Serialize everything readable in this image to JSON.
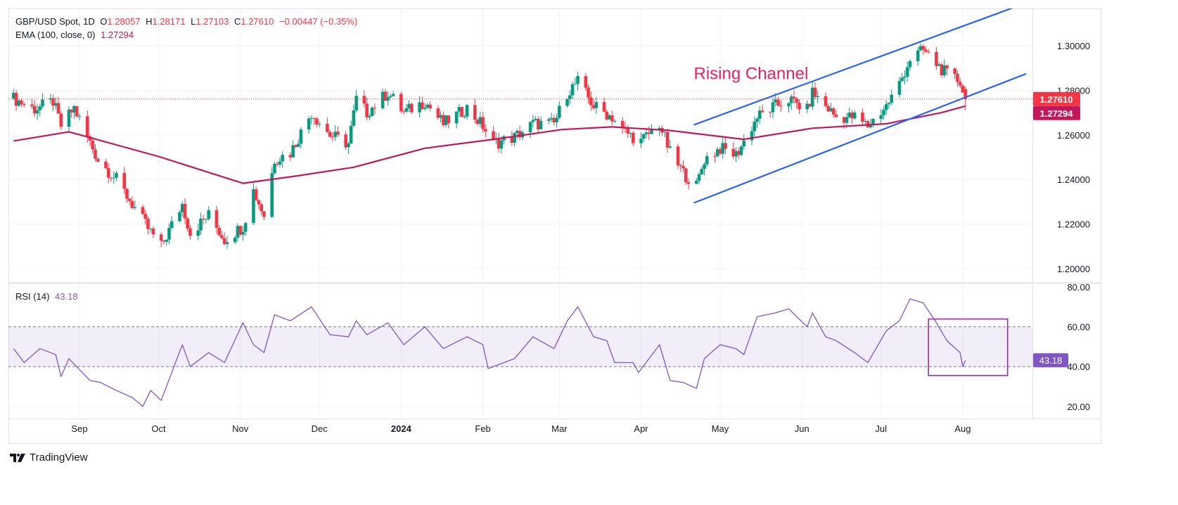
{
  "header": {
    "symbol": "GBP/USD Spot, 1D",
    "open_label": "O",
    "open": "1.28057",
    "high_label": "H",
    "high": "1.28171",
    "low_label": "L",
    "low": "1.27103",
    "close_label": "C",
    "close": "1.27610",
    "change": "−0.00447 (−0.35%)",
    "ema_label": "EMA (100, close, 0)",
    "ema_value": "1.27294",
    "rsi_label": "RSI (14)",
    "rsi_value": "43.18"
  },
  "branding": {
    "name": "TradingView"
  },
  "colors": {
    "up": "#089981",
    "down": "#f23645",
    "ema": "#c2185b",
    "channel": "#2962ff",
    "rsi": "#7e57c2",
    "annotation": "#e91e63",
    "rsi_box": "#9c27b0"
  },
  "chart_data": [
    {
      "type": "candlestick",
      "title": "GBP/USD Spot, 1D",
      "ylim": [
        1.19,
        1.315
      ],
      "yticks": [
        "1.30000",
        "1.28000",
        "1.26000",
        "1.24000",
        "1.22000",
        "1.20000"
      ],
      "ytick_values": [
        1.3,
        1.28,
        1.26,
        1.24,
        1.22,
        1.2
      ],
      "xticks": [
        {
          "label": "Sep",
          "date": "2023-09-01",
          "bold": false
        },
        {
          "label": "Oct",
          "date": "2023-10-01",
          "bold": false
        },
        {
          "label": "Nov",
          "date": "2023-11-01",
          "bold": false
        },
        {
          "label": "Dec",
          "date": "2023-12-01",
          "bold": false
        },
        {
          "label": "2024",
          "date": "2024-01-01",
          "bold": true
        },
        {
          "label": "Feb",
          "date": "2024-02-01",
          "bold": false
        },
        {
          "label": "Mar",
          "date": "2024-03-01",
          "bold": false
        },
        {
          "label": "Apr",
          "date": "2024-04-01",
          "bold": false
        },
        {
          "label": "May",
          "date": "2024-05-01",
          "bold": false
        },
        {
          "label": "Jun",
          "date": "2024-06-01",
          "bold": false
        },
        {
          "label": "Jul",
          "date": "2024-07-01",
          "bold": false
        },
        {
          "label": "Aug",
          "date": "2024-08-01",
          "bold": false
        }
      ],
      "close_path": [
        [
          "2023-08-07",
          1.2763
        ],
        [
          "2023-08-15",
          1.2716
        ],
        [
          "2023-08-22",
          1.275
        ],
        [
          "2023-08-25",
          1.264
        ],
        [
          "2023-08-30",
          1.272
        ],
        [
          "2023-09-04",
          1.259
        ],
        [
          "2023-09-08",
          1.249
        ],
        [
          "2023-09-15",
          1.24
        ],
        [
          "2023-09-21",
          1.229
        ],
        [
          "2023-09-27",
          1.218
        ],
        [
          "2023-10-02",
          1.21
        ],
        [
          "2023-10-10",
          1.229
        ],
        [
          "2023-10-13",
          1.216
        ],
        [
          "2023-10-20",
          1.224
        ],
        [
          "2023-10-26",
          1.213
        ],
        [
          "2023-11-02",
          1.219
        ],
        [
          "2023-11-06",
          1.235
        ],
        [
          "2023-11-10",
          1.224
        ],
        [
          "2023-11-14",
          1.249
        ],
        [
          "2023-11-20",
          1.252
        ],
        [
          "2023-11-28",
          1.27
        ],
        [
          "2023-12-05",
          1.26
        ],
        [
          "2023-12-12",
          1.256
        ],
        [
          "2023-12-15",
          1.276
        ],
        [
          "2023-12-19",
          1.27
        ],
        [
          "2023-12-27",
          1.279
        ],
        [
          "2024-01-02",
          1.27
        ],
        [
          "2024-01-10",
          1.275
        ],
        [
          "2024-01-17",
          1.265
        ],
        [
          "2024-01-26",
          1.272
        ],
        [
          "2024-02-01",
          1.264
        ],
        [
          "2024-02-05",
          1.256
        ],
        [
          "2024-02-13",
          1.259
        ],
        [
          "2024-02-20",
          1.265
        ],
        [
          "2024-02-28",
          1.265
        ],
        [
          "2024-03-04",
          1.279
        ],
        [
          "2024-03-08",
          1.284
        ],
        [
          "2024-03-14",
          1.273
        ],
        [
          "2024-03-21",
          1.268
        ],
        [
          "2024-03-25",
          1.262
        ],
        [
          "2024-04-01",
          1.257
        ],
        [
          "2024-04-08",
          1.265
        ],
        [
          "2024-04-12",
          1.252
        ],
        [
          "2024-04-17",
          1.243
        ],
        [
          "2024-04-22",
          1.237
        ],
        [
          "2024-04-25",
          1.249
        ],
        [
          "2024-05-01",
          1.254
        ],
        [
          "2024-05-07",
          1.251
        ],
        [
          "2024-05-10",
          1.257
        ],
        [
          "2024-05-15",
          1.268
        ],
        [
          "2024-05-22",
          1.273
        ],
        [
          "2024-05-27",
          1.276
        ],
        [
          "2024-06-03",
          1.271
        ],
        [
          "2024-06-05",
          1.279
        ],
        [
          "2024-06-10",
          1.273
        ],
        [
          "2024-06-14",
          1.268
        ],
        [
          "2024-06-21",
          1.268
        ],
        [
          "2024-06-26",
          1.264
        ],
        [
          "2024-07-03",
          1.273
        ],
        [
          "2024-07-08",
          1.283
        ],
        [
          "2024-07-12",
          1.294
        ],
        [
          "2024-07-17",
          1.298
        ],
        [
          "2024-07-22",
          1.292
        ],
        [
          "2024-07-26",
          1.287
        ],
        [
          "2024-07-31",
          1.284
        ],
        [
          "2024-08-02",
          1.2761
        ]
      ],
      "last_candle": {
        "open": 1.28057,
        "high": 1.28171,
        "low": 1.27103,
        "close": 1.2761
      },
      "ema_100": {
        "label": "EMA (100, close, 0)",
        "points": [
          [
            "2023-08-07",
            1.2573
          ],
          [
            "2023-08-28",
            1.2614
          ],
          [
            "2023-10-01",
            1.2503
          ],
          [
            "2023-11-02",
            1.2383
          ],
          [
            "2023-11-22",
            1.2415
          ],
          [
            "2023-12-14",
            1.2455
          ],
          [
            "2024-01-10",
            1.254
          ],
          [
            "2024-02-05",
            1.258
          ],
          [
            "2024-03-02",
            1.2624
          ],
          [
            "2024-03-21",
            1.2636
          ],
          [
            "2024-04-12",
            1.262
          ],
          [
            "2024-05-10",
            1.258
          ],
          [
            "2024-06-05",
            1.263
          ],
          [
            "2024-07-03",
            1.265
          ],
          [
            "2024-07-24",
            1.27
          ],
          [
            "2024-08-02",
            1.27294
          ]
        ]
      },
      "current_price_label": "1.27610",
      "ema_price_label": "1.27294",
      "annotations": [
        {
          "type": "text",
          "text": "Rising Channel",
          "date": "2024-04-21",
          "price": 1.285
        },
        {
          "type": "trendline",
          "name": "channel-upper",
          "from": [
            "2024-04-21",
            1.2645
          ],
          "to": [
            "2024-08-20",
            1.317
          ]
        },
        {
          "type": "trendline",
          "name": "channel-lower",
          "from": [
            "2024-04-21",
            1.2295
          ],
          "to": [
            "2024-08-25",
            1.2874
          ]
        }
      ]
    },
    {
      "type": "line",
      "title": "RSI (14)",
      "ylim": [
        10,
        82
      ],
      "yticks": [
        "80.00",
        "60.00",
        "40.00",
        "20.00"
      ],
      "ytick_values": [
        80,
        60,
        40,
        20
      ],
      "band": [
        40,
        60
      ],
      "current_label": "43.18",
      "points": [
        [
          "2023-08-07",
          49
        ],
        [
          "2023-08-11",
          42
        ],
        [
          "2023-08-17",
          49
        ],
        [
          "2023-08-23",
          46
        ],
        [
          "2023-08-25",
          35
        ],
        [
          "2023-08-28",
          44
        ],
        [
          "2023-09-05",
          33
        ],
        [
          "2023-09-09",
          32
        ],
        [
          "2023-09-15",
          28
        ],
        [
          "2023-09-21",
          24.5
        ],
        [
          "2023-09-25",
          20
        ],
        [
          "2023-09-28",
          28
        ],
        [
          "2023-10-02",
          23
        ],
        [
          "2023-10-10",
          51
        ],
        [
          "2023-10-13",
          40
        ],
        [
          "2023-10-20",
          47
        ],
        [
          "2023-10-26",
          42
        ],
        [
          "2023-11-02",
          62
        ],
        [
          "2023-11-06",
          51
        ],
        [
          "2023-11-10",
          47
        ],
        [
          "2023-11-14",
          66
        ],
        [
          "2023-11-20",
          63
        ],
        [
          "2023-11-28",
          70
        ],
        [
          "2023-12-05",
          56
        ],
        [
          "2023-12-12",
          55
        ],
        [
          "2023-12-15",
          63
        ],
        [
          "2023-12-19",
          56
        ],
        [
          "2023-12-27",
          62
        ],
        [
          "2024-01-02",
          51
        ],
        [
          "2024-01-10",
          60
        ],
        [
          "2024-01-17",
          49
        ],
        [
          "2024-01-26",
          55
        ],
        [
          "2024-02-01",
          51
        ],
        [
          "2024-02-03",
          39
        ],
        [
          "2024-02-13",
          44
        ],
        [
          "2024-02-20",
          55
        ],
        [
          "2024-02-28",
          49
        ],
        [
          "2024-03-04",
          63
        ],
        [
          "2024-03-08",
          70
        ],
        [
          "2024-03-14",
          55
        ],
        [
          "2024-03-19",
          53
        ],
        [
          "2024-03-22",
          42
        ],
        [
          "2024-03-29",
          42
        ],
        [
          "2024-03-31",
          37
        ],
        [
          "2024-04-08",
          51
        ],
        [
          "2024-04-12",
          33
        ],
        [
          "2024-04-17",
          32
        ],
        [
          "2024-04-22",
          29
        ],
        [
          "2024-04-25",
          44
        ],
        [
          "2024-05-01",
          51
        ],
        [
          "2024-05-07",
          49
        ],
        [
          "2024-05-10",
          46
        ],
        [
          "2024-05-15",
          65
        ],
        [
          "2024-05-22",
          67
        ],
        [
          "2024-05-27",
          69
        ],
        [
          "2024-06-03",
          60
        ],
        [
          "2024-06-05",
          67
        ],
        [
          "2024-06-10",
          55
        ],
        [
          "2024-06-14",
          53
        ],
        [
          "2024-06-21",
          47
        ],
        [
          "2024-06-26",
          42
        ],
        [
          "2024-07-03",
          58
        ],
        [
          "2024-07-08",
          63
        ],
        [
          "2024-07-12",
          74
        ],
        [
          "2024-07-17",
          72
        ],
        [
          "2024-07-22",
          62
        ],
        [
          "2024-07-26",
          53
        ],
        [
          "2024-07-31",
          47
        ],
        [
          "2024-08-01",
          40
        ],
        [
          "2024-08-02",
          43.18
        ]
      ],
      "annotations": [
        {
          "type": "rectangle",
          "from": [
            "2024-07-19",
            63.9
          ],
          "to": [
            "2024-08-18",
            35.5
          ]
        }
      ]
    }
  ]
}
